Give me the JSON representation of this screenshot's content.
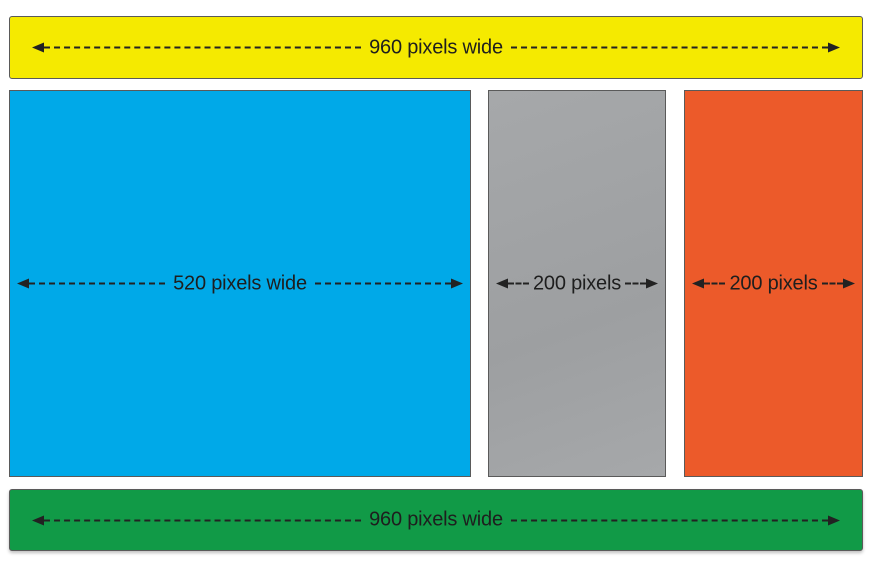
{
  "colors": {
    "header": "#f5ea00",
    "main": "#00a9e8",
    "sidebar_left": "#a6a8aa",
    "sidebar_right": "#ec5a2a",
    "footer": "#119a47",
    "dimension_line": "#222222"
  },
  "blocks": {
    "header": {
      "label": "960 pixels wide"
    },
    "main": {
      "label": "520 pixels wide"
    },
    "sidebar_left": {
      "label": "200 pixels"
    },
    "sidebar_right": {
      "label": "200 pixels"
    },
    "footer": {
      "label": "960 pixels wide"
    }
  }
}
